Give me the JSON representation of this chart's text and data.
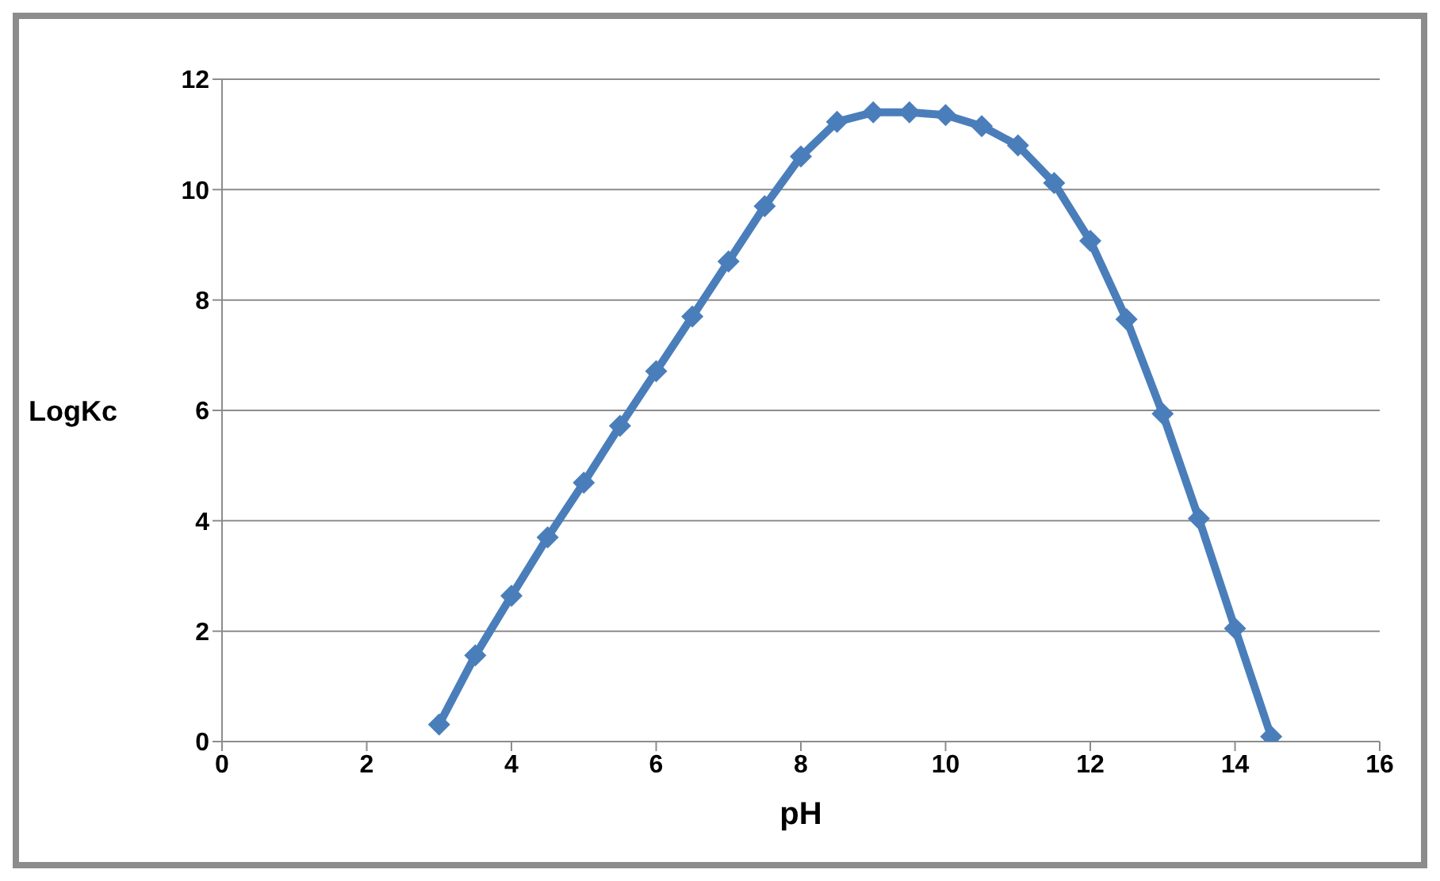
{
  "chart_data": {
    "type": "line",
    "xlabel": "pH",
    "ylabel": "LogKc",
    "x": [
      3,
      3.5,
      4,
      4.5,
      5,
      5.5,
      6,
      6.5,
      7,
      7.5,
      8,
      8.5,
      9,
      9.5,
      10,
      10.5,
      11,
      11.5,
      12,
      12.5,
      13,
      13.5,
      14,
      14.5
    ],
    "series": [
      {
        "color": "#4a7ebb",
        "values": [
          0.31,
          1.56,
          2.64,
          3.7,
          4.69,
          5.72,
          6.71,
          7.7,
          8.7,
          9.7,
          10.6,
          11.23,
          11.4,
          11.4,
          11.35,
          11.15,
          10.8,
          10.12,
          9.07,
          7.65,
          5.94,
          4.04,
          2.05,
          0.09
        ]
      }
    ],
    "xlim": [
      0,
      16
    ],
    "xticks": [
      0,
      2,
      4,
      6,
      8,
      10,
      12,
      14,
      16
    ],
    "ylim": [
      0,
      12
    ],
    "yticks": [
      0,
      2,
      4,
      6,
      8,
      10,
      12
    ],
    "grid": "y",
    "legend": false,
    "marker": "diamond",
    "line_style": "solid"
  }
}
